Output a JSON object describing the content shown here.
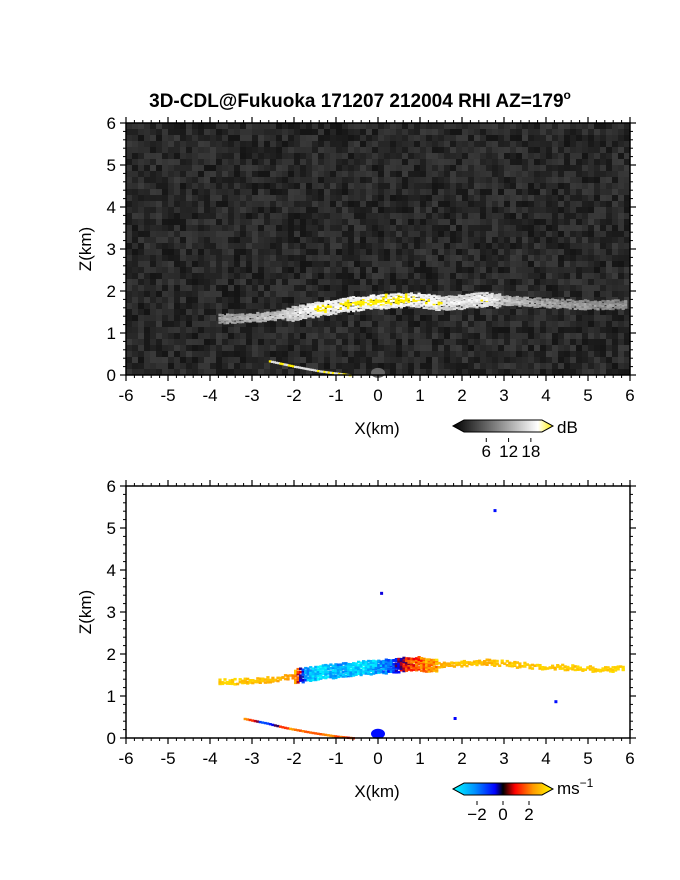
{
  "title": "3D-CDL@Fukuoka 171207 212004 RHI AZ=179",
  "title_sup": "o",
  "chart_data": [
    {
      "type": "heatmap",
      "panel": "intensity",
      "xlabel": "X(km)",
      "ylabel": "Z(km)",
      "xlim": [
        -6,
        6
      ],
      "ylim": [
        0,
        6
      ],
      "x_ticks": [
        "-6",
        "-5",
        "-4",
        "-3",
        "-2",
        "-1",
        "0",
        "1",
        "2",
        "3",
        "4",
        "5",
        "6"
      ],
      "y_ticks": [
        "0",
        "1",
        "2",
        "3",
        "4",
        "5",
        "6"
      ],
      "background": "noise",
      "colorbar": {
        "unit": "dB",
        "ticks": [
          "6",
          "12",
          "18"
        ],
        "range": [
          0,
          21
        ]
      },
      "layer": [
        {
          "x": -3.8,
          "z": 1.36,
          "v": 10
        },
        {
          "x": -3.2,
          "z": 1.38,
          "v": 11
        },
        {
          "x": -2.6,
          "z": 1.42,
          "v": 13
        },
        {
          "x": -2.2,
          "z": 1.48,
          "v": 15
        },
        {
          "x": -1.8,
          "z": 1.55,
          "v": 18
        },
        {
          "x": -1.4,
          "z": 1.62,
          "v": 20
        },
        {
          "x": -1.0,
          "z": 1.68,
          "v": 20
        },
        {
          "x": -0.6,
          "z": 1.74,
          "v": 21
        },
        {
          "x": -0.2,
          "z": 1.78,
          "v": 21
        },
        {
          "x": 0.2,
          "z": 1.8,
          "v": 21
        },
        {
          "x": 0.6,
          "z": 1.83,
          "v": 21
        },
        {
          "x": 1.0,
          "z": 1.82,
          "v": 20
        },
        {
          "x": 1.4,
          "z": 1.76,
          "v": 19
        },
        {
          "x": 1.8,
          "z": 1.76,
          "v": 17
        },
        {
          "x": 2.2,
          "z": 1.82,
          "v": 18
        },
        {
          "x": 2.6,
          "z": 1.84,
          "v": 19
        },
        {
          "x": 3.0,
          "z": 1.8,
          "v": 13
        },
        {
          "x": 3.6,
          "z": 1.76,
          "v": 11
        },
        {
          "x": 4.2,
          "z": 1.72,
          "v": 10
        },
        {
          "x": 4.8,
          "z": 1.7,
          "v": 9
        },
        {
          "x": 5.4,
          "z": 1.7,
          "v": 8
        },
        {
          "x": 5.9,
          "z": 1.7,
          "v": 8
        }
      ],
      "ground_trail": [
        {
          "x": -2.6,
          "z": 0.35
        },
        {
          "x": -2.0,
          "z": 0.22
        },
        {
          "x": -1.4,
          "z": 0.11
        },
        {
          "x": -0.7,
          "z": 0.02
        }
      ]
    },
    {
      "type": "heatmap",
      "panel": "velocity",
      "xlabel": "X(km)",
      "ylabel": "Z(km)",
      "xlim": [
        -6,
        6
      ],
      "ylim": [
        0,
        6
      ],
      "x_ticks": [
        "-6",
        "-5",
        "-4",
        "-3",
        "-2",
        "-1",
        "0",
        "1",
        "2",
        "3",
        "4",
        "5",
        "6"
      ],
      "y_ticks": [
        "0",
        "1",
        "2",
        "3",
        "4",
        "5",
        "6"
      ],
      "background": "white",
      "colorbar": {
        "unit": "ms",
        "unit_exp": "−1",
        "ticks": [
          "−2",
          "0",
          "2"
        ],
        "range": [
          -3,
          3
        ]
      },
      "layer": [
        {
          "x": -3.8,
          "z": 1.38,
          "v": 2.4
        },
        {
          "x": -3.0,
          "z": 1.4,
          "v": 2.3
        },
        {
          "x": -2.4,
          "z": 1.46,
          "v": 2.1
        },
        {
          "x": -2.0,
          "z": 1.52,
          "v": 1.8
        },
        {
          "x": -1.7,
          "z": 1.56,
          "v": -2.2
        },
        {
          "x": -1.3,
          "z": 1.62,
          "v": -2.5
        },
        {
          "x": -0.9,
          "z": 1.66,
          "v": -1.8
        },
        {
          "x": -0.5,
          "z": 1.7,
          "v": -2.6
        },
        {
          "x": -0.1,
          "z": 1.74,
          "v": -2.2
        },
        {
          "x": 0.3,
          "z": 1.76,
          "v": -1.0
        },
        {
          "x": 0.6,
          "z": 1.8,
          "v": 0.6
        },
        {
          "x": 0.9,
          "z": 1.82,
          "v": 1.4
        },
        {
          "x": 1.3,
          "z": 1.78,
          "v": 2.0
        },
        {
          "x": 1.8,
          "z": 1.8,
          "v": 2.3
        },
        {
          "x": 2.4,
          "z": 1.86,
          "v": 2.2
        },
        {
          "x": 3.0,
          "z": 1.82,
          "v": 2.3
        },
        {
          "x": 3.6,
          "z": 1.76,
          "v": 2.4
        },
        {
          "x": 4.2,
          "z": 1.74,
          "v": 2.3
        },
        {
          "x": 4.8,
          "z": 1.7,
          "v": 2.4
        },
        {
          "x": 5.4,
          "z": 1.68,
          "v": 2.4
        },
        {
          "x": 5.8,
          "z": 1.7,
          "v": 2.5
        }
      ],
      "ground_trail": [
        {
          "x": -3.2,
          "z": 0.48,
          "v": 2.0
        },
        {
          "x": -2.7,
          "z": 0.38,
          "v": -1.5
        },
        {
          "x": -2.2,
          "z": 0.26,
          "v": 1.6
        },
        {
          "x": -1.6,
          "z": 0.15,
          "v": 1.4
        },
        {
          "x": -1.0,
          "z": 0.06,
          "v": 1.2
        },
        {
          "x": -0.6,
          "z": 0.02,
          "v": 1.0
        }
      ],
      "specks": [
        {
          "x": 2.75,
          "z": 5.45,
          "v": -0.6
        },
        {
          "x": 0.05,
          "z": 3.48,
          "v": -0.4
        },
        {
          "x": 4.2,
          "z": 0.9,
          "v": -0.6
        },
        {
          "x": 1.8,
          "z": 0.5,
          "v": -0.5
        },
        {
          "x": 0.0,
          "z": 0.1,
          "v": -0.6
        }
      ]
    }
  ]
}
